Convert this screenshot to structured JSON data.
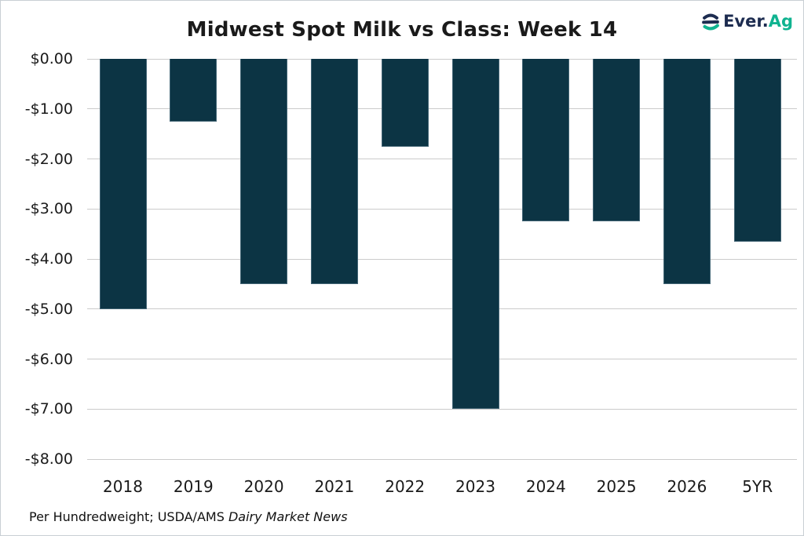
{
  "logo": {
    "name": "Ever.Ag",
    "prefix": "Ever.",
    "suffix": "Ag"
  },
  "footnote": {
    "regular": "Per Hundredweight; USDA/AMS ",
    "italic": "Dairy Market News"
  },
  "chart_data": {
    "type": "bar",
    "title": "Midwest Spot Milk vs Class: Week 14",
    "categories": [
      "2018",
      "2019",
      "2020",
      "2021",
      "2022",
      "2023",
      "2024",
      "2025",
      "2026",
      "5YR"
    ],
    "values": [
      -5.0,
      -1.25,
      -4.5,
      -4.5,
      -1.75,
      -7.0,
      -3.25,
      -3.25,
      -4.5,
      -3.65
    ],
    "xlabel": "",
    "ylabel": "",
    "ylim": [
      -8,
      0
    ],
    "ytick_values": [
      0,
      -1,
      -2,
      -3,
      -4,
      -5,
      -6,
      -7,
      -8
    ],
    "ytick_labels": [
      "$0.00",
      "-$1.00",
      "-$2.00",
      "-$3.00",
      "-$4.00",
      "-$5.00",
      "-$6.00",
      "-$7.00",
      "-$8.00"
    ],
    "grid": true,
    "legend": false,
    "bar_color": "#0c3444",
    "gridline_color": "#cbcbcb"
  }
}
